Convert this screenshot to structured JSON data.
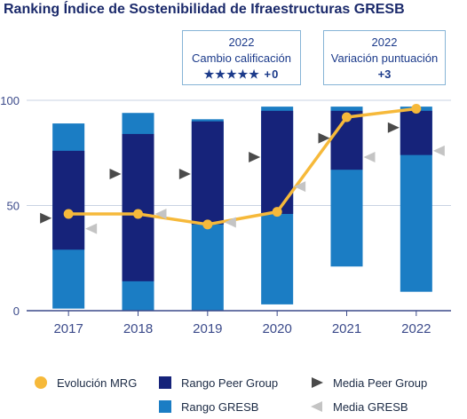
{
  "title": "Ranking Índice de Sostenibilidad de Ifraestructuras GRESB",
  "callouts": [
    {
      "year": "2022",
      "label": "Cambio calificación",
      "value": "★★★★★ +0"
    },
    {
      "year": "2022",
      "label": "Variación puntuación",
      "value": "+3"
    }
  ],
  "colors": {
    "peer_range": "#16237a",
    "gresb_range": "#1b7dc4",
    "evolution": "#f6b93a",
    "peer_mean": "#4a4a4a",
    "gresb_mean": "#c4c4c4",
    "axis": "#3b4a8a"
  },
  "chart_data": {
    "type": "bar",
    "title": "Ranking Índice de Sostenibilidad de Ifraestructuras GRESB",
    "categories": [
      "2017",
      "2018",
      "2019",
      "2020",
      "2021",
      "2022"
    ],
    "ylim": [
      0,
      100
    ],
    "yticks": [
      "0",
      "50",
      "100"
    ],
    "grid": true,
    "legend_position": "bottom",
    "series": [
      {
        "name": "Rango GRESB",
        "kind": "floating-bar",
        "low": [
          1,
          0,
          0,
          3,
          21,
          9
        ],
        "high": [
          89,
          94,
          91,
          97,
          97,
          97
        ]
      },
      {
        "name": "Rango Peer Group",
        "kind": "floating-bar",
        "low": [
          29,
          14,
          41,
          46,
          67,
          74
        ],
        "high": [
          76,
          84,
          90,
          95,
          95,
          95
        ]
      },
      {
        "name": "Evolución MRG",
        "kind": "line",
        "values": [
          46,
          46,
          41,
          47,
          92,
          96
        ]
      },
      {
        "name": "Media Peer Group",
        "kind": "marker",
        "values": [
          44,
          65,
          65,
          73,
          82,
          87
        ]
      },
      {
        "name": "Media GRESB",
        "kind": "marker",
        "values": [
          39,
          46,
          42,
          59,
          73,
          76
        ]
      }
    ]
  },
  "legend": [
    {
      "label": "Evolución MRG",
      "icon": "circle",
      "color": "#f6b93a"
    },
    {
      "label": "Rango Peer Group",
      "icon": "square",
      "color": "#16237a"
    },
    {
      "label": "Media Peer Group",
      "icon": "triangle",
      "color": "#4a4a4a"
    },
    {
      "label": "Rango GRESB",
      "icon": "square",
      "color": "#1b7dc4"
    },
    {
      "label": "Media GRESB",
      "icon": "triangle",
      "color": "#c4c4c4"
    }
  ]
}
